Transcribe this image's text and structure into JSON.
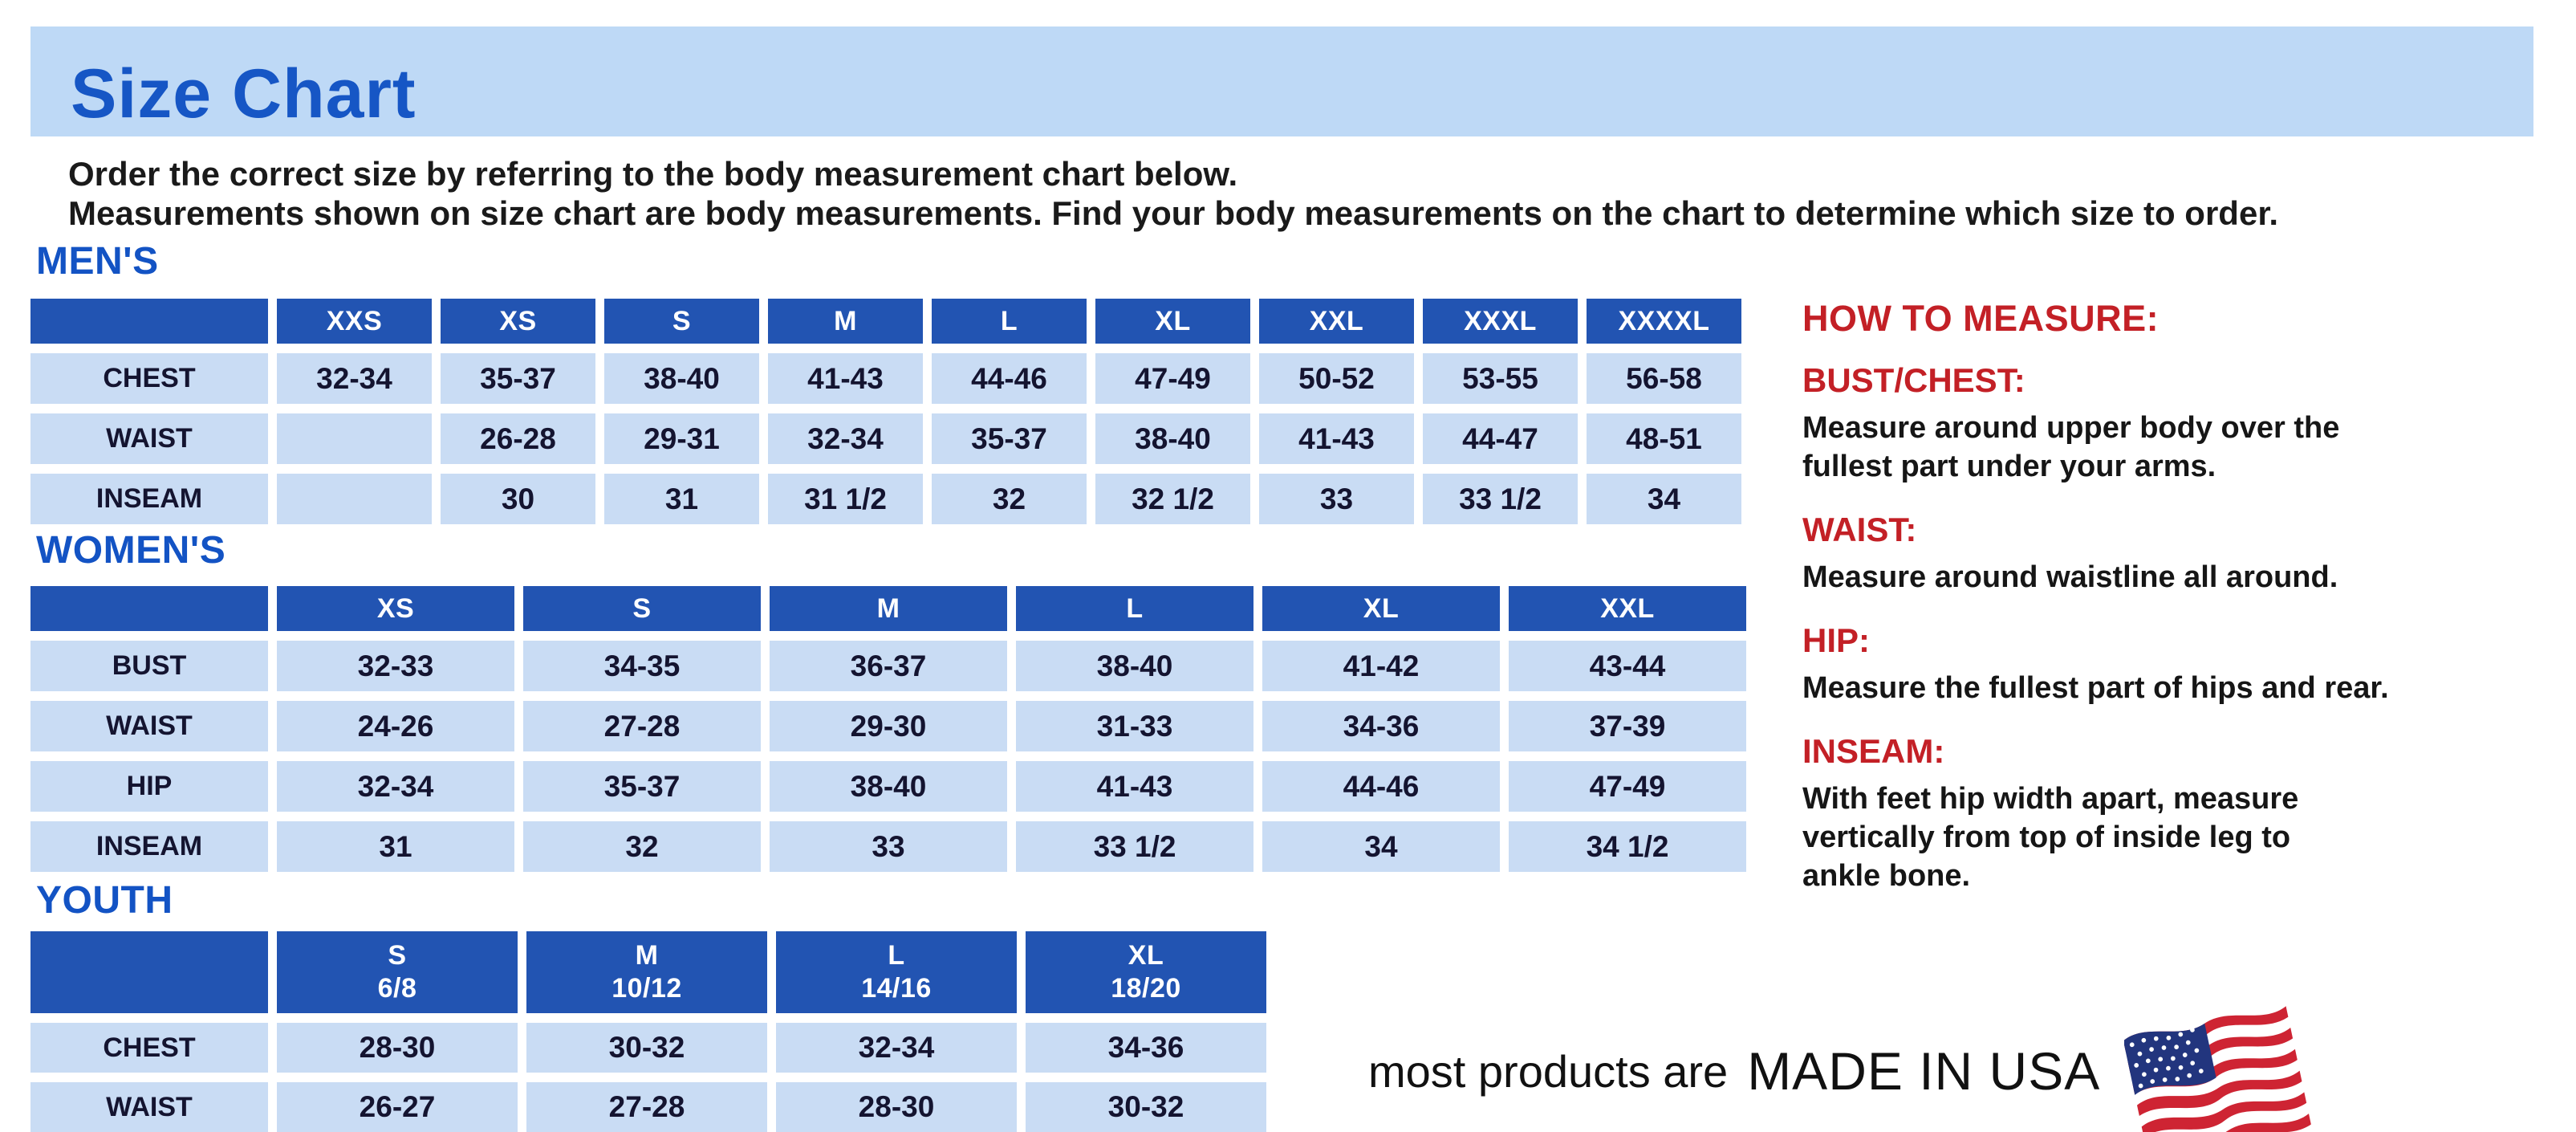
{
  "page": {
    "title": "Size Chart",
    "intro_line1": "Order the correct size by referring to the body measurement chart below.",
    "intro_line2": "Measurements shown on size chart are body measurements.  Find your body measurements on the chart to determine which size to order."
  },
  "colors": {
    "band_blue": "#BED9F6",
    "heading_blue": "#1353C4",
    "table_header_blue": "#2254B2",
    "cell_blue": "#C9DCF4",
    "accent_red": "#C32026",
    "text_dark": "#141430"
  },
  "tables": {
    "mens": {
      "heading": "MEN'S",
      "columns": [
        "XXS",
        "XS",
        "S",
        "M",
        "L",
        "XL",
        "XXL",
        "XXXL",
        "XXXXL"
      ],
      "rows": [
        {
          "label": "CHEST",
          "values": [
            "32-34",
            "35-37",
            "38-40",
            "41-43",
            "44-46",
            "47-49",
            "50-52",
            "53-55",
            "56-58"
          ]
        },
        {
          "label": "WAIST",
          "values": [
            "",
            "26-28",
            "29-31",
            "32-34",
            "35-37",
            "38-40",
            "41-43",
            "44-47",
            "48-51"
          ]
        },
        {
          "label": "INSEAM",
          "values": [
            "",
            "30",
            "31",
            "31 1/2",
            "32",
            "32 1/2",
            "33",
            "33 1/2",
            "34"
          ]
        }
      ]
    },
    "womens": {
      "heading": "WOMEN'S",
      "columns": [
        "XS",
        "S",
        "M",
        "L",
        "XL",
        "XXL"
      ],
      "rows": [
        {
          "label": "BUST",
          "values": [
            "32-33",
            "34-35",
            "36-37",
            "38-40",
            "41-42",
            "43-44"
          ]
        },
        {
          "label": "WAIST",
          "values": [
            "24-26",
            "27-28",
            "29-30",
            "31-33",
            "34-36",
            "37-39"
          ]
        },
        {
          "label": "HIP",
          "values": [
            "32-34",
            "35-37",
            "38-40",
            "41-43",
            "44-46",
            "47-49"
          ]
        },
        {
          "label": "INSEAM",
          "values": [
            "31",
            "32",
            "33",
            "33 1/2",
            "34",
            "34 1/2"
          ]
        }
      ]
    },
    "youth": {
      "heading": "YOUTH",
      "columns": [
        {
          "size": "S",
          "range": "6/8"
        },
        {
          "size": "M",
          "range": "10/12"
        },
        {
          "size": "L",
          "range": "14/16"
        },
        {
          "size": "XL",
          "range": "18/20"
        }
      ],
      "rows": [
        {
          "label": "CHEST",
          "values": [
            "28-30",
            "30-32",
            "32-34",
            "34-36"
          ]
        },
        {
          "label": "WAIST",
          "values": [
            "26-27",
            "27-28",
            "28-30",
            "30-32"
          ]
        }
      ]
    }
  },
  "how_to_measure": {
    "heading": "HOW TO MEASURE:",
    "items": [
      {
        "term": "BUST/CHEST:",
        "desc": "Measure around upper body over the\nfullest part under your arms."
      },
      {
        "term": "WAIST:",
        "desc": "Measure around waistline all around."
      },
      {
        "term": "HIP:",
        "desc": "Measure the fullest part of hips and rear."
      },
      {
        "term": "INSEAM:",
        "desc": "With feet hip width apart, measure\nvertically from top of inside leg to\nankle bone."
      }
    ]
  },
  "footer": {
    "made_in_prefix": "most products are",
    "made_in": "MADE IN USA",
    "flag_icon": "us-flag-icon"
  }
}
